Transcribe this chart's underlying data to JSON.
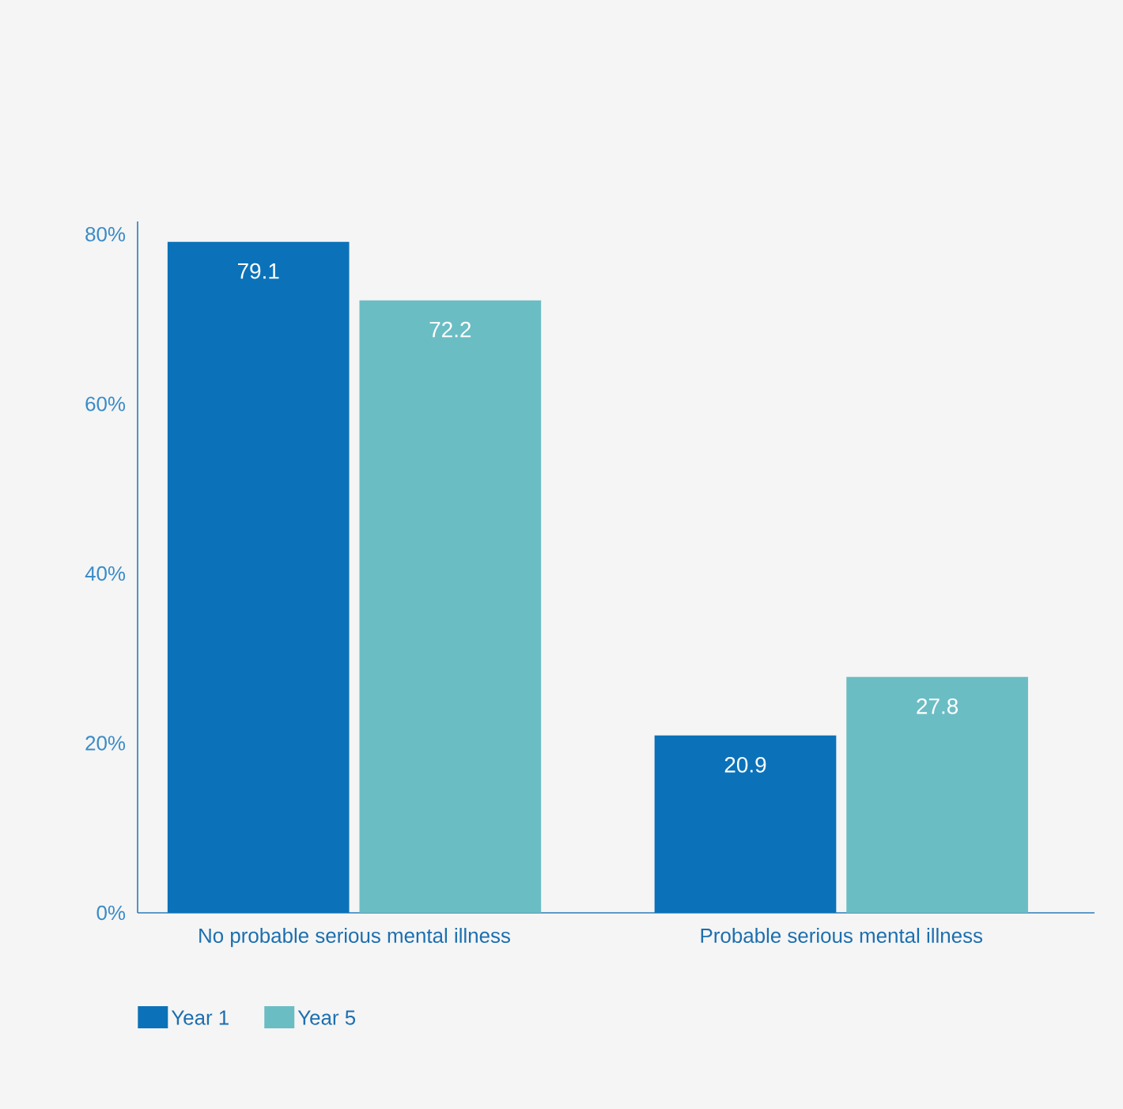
{
  "chart_data": {
    "type": "bar",
    "categories": [
      "No probable serious mental illness",
      "Probable serious mental illness"
    ],
    "series": [
      {
        "name": "Year 1",
        "color": "#0b72b9",
        "values": [
          79.1,
          20.9
        ]
      },
      {
        "name": "Year 5",
        "color": "#6bbdc4",
        "values": [
          72.2,
          27.8
        ]
      }
    ],
    "ylim": [
      0,
      81.5
    ],
    "yticks": [
      {
        "value": 0,
        "label": "0%"
      },
      {
        "value": 20,
        "label": "20%"
      },
      {
        "value": 40,
        "label": "40%"
      },
      {
        "value": 60,
        "label": "60%"
      },
      {
        "value": 80,
        "label": "80%"
      }
    ],
    "data_labels": true,
    "grid": false,
    "legend": "bottom left"
  }
}
